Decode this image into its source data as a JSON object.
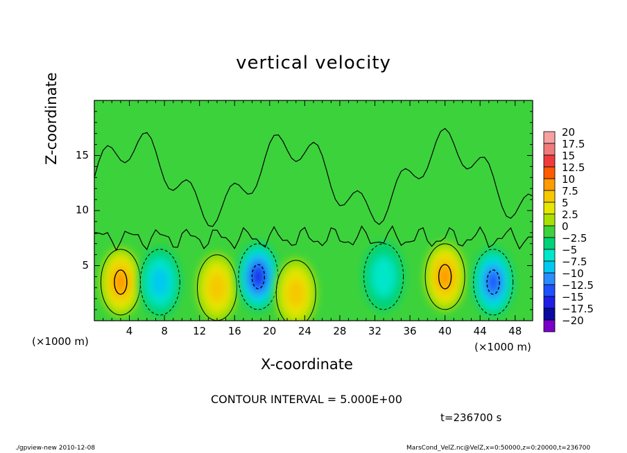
{
  "chart_data": {
    "type": "heatmap",
    "title": "vertical velocity",
    "xlabel": "X-coordinate",
    "ylabel": "Z-coordinate",
    "x_unit_left": "(×1000 m)",
    "x_unit_right": "(×1000 m)",
    "xlim": [
      0,
      50
    ],
    "ylim": [
      0,
      20
    ],
    "x_ticks": [
      4,
      8,
      12,
      16,
      20,
      24,
      28,
      32,
      36,
      40,
      44,
      48
    ],
    "y_ticks": [
      5,
      10,
      15
    ],
    "colorbar": {
      "labels": [
        "20",
        "17.5",
        "15",
        "12.5",
        "10",
        "7.5",
        "5",
        "2.5",
        "0",
        "−2.5",
        "−5",
        "−7.5",
        "−10",
        "−12.5",
        "−15",
        "−17.5",
        "−20"
      ],
      "colors": [
        "#f7a0a0",
        "#f07a7a",
        "#ee3c3c",
        "#ff5a00",
        "#ff9a00",
        "#f5c800",
        "#e6e600",
        "#a8e000",
        "#3cd23c",
        "#00d278",
        "#00e6c8",
        "#00c8f0",
        "#2a8cff",
        "#1e50ff",
        "#1e1ee6",
        "#0a0aa0",
        "#7800c8"
      ]
    },
    "cells": [
      {
        "x": 3,
        "z": 3.5,
        "value": 10
      },
      {
        "x": 7.5,
        "z": 3.5,
        "value": -8
      },
      {
        "x": 14,
        "z": 3,
        "value": 7
      },
      {
        "x": 18.7,
        "z": 4,
        "value": -16
      },
      {
        "x": 23,
        "z": 2.5,
        "value": 8
      },
      {
        "x": 33,
        "z": 4,
        "value": -6
      },
      {
        "x": 40,
        "z": 4,
        "value": 11
      },
      {
        "x": 45.5,
        "z": 3.5,
        "value": -12
      }
    ],
    "annotations": {
      "contour_interval": "CONTOUR INTERVAL = 5.000E+00",
      "time": "t=236700 s"
    }
  },
  "footer": {
    "left": "./gpview-new   2010-12-08",
    "right": "MarsCond_VelZ.nc@VelZ,x=0:50000,z=0:20000,t=236700"
  }
}
